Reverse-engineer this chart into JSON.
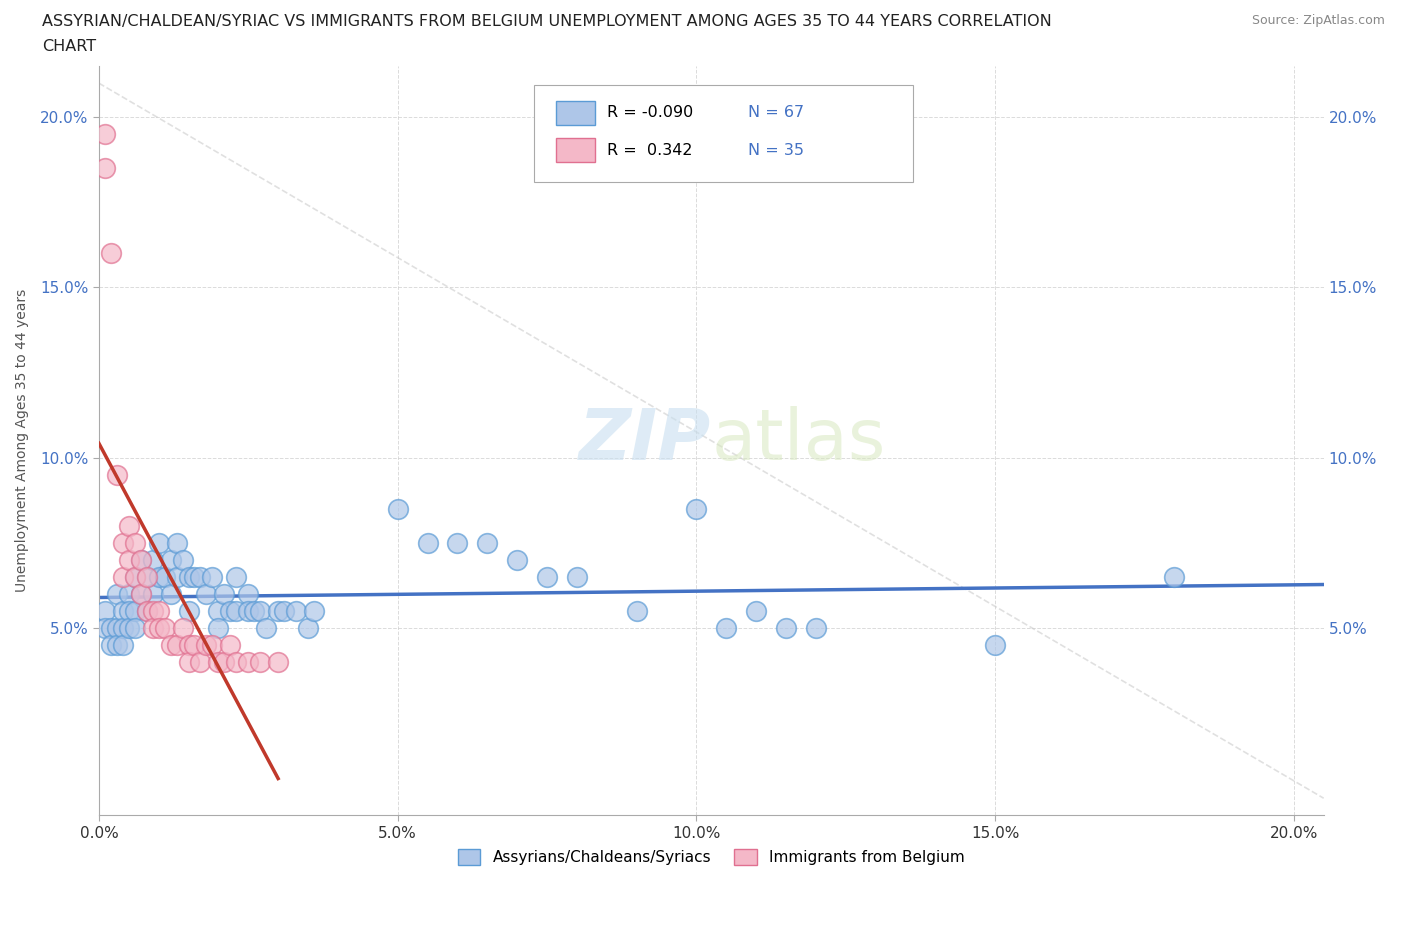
{
  "title_line1": "ASSYRIAN/CHALDEAN/SYRIAC VS IMMIGRANTS FROM BELGIUM UNEMPLOYMENT AMONG AGES 35 TO 44 YEARS CORRELATION",
  "title_line2": "CHART",
  "source_text": "Source: ZipAtlas.com",
  "ylabel": "Unemployment Among Ages 35 to 44 years",
  "xlim": [
    0.0,
    0.205
  ],
  "ylim": [
    -0.005,
    0.215
  ],
  "xtick_vals": [
    0.0,
    0.05,
    0.1,
    0.15,
    0.2
  ],
  "xtick_labels": [
    "0.0%",
    "5.0%",
    "10.0%",
    "15.0%",
    "20.0%"
  ],
  "ytick_vals": [
    0.05,
    0.1,
    0.15,
    0.2
  ],
  "ytick_labels": [
    "5.0%",
    "10.0%",
    "15.0%",
    "20.0%"
  ],
  "blue_R": -0.09,
  "blue_N": 67,
  "pink_R": 0.342,
  "pink_N": 35,
  "blue_fill": "#aec6e8",
  "blue_edge": "#5b9bd5",
  "pink_fill": "#f4b8c8",
  "pink_edge": "#e07090",
  "blue_line_color": "#4472c4",
  "pink_line_color": "#c0392b",
  "pink_dash_color": "#cccccc",
  "ytick_color": "#4472c4",
  "xtick_color": "#4472c4",
  "watermark_zip": "ZIP",
  "watermark_atlas": "atlas",
  "blue_dots": [
    [
      0.001,
      0.055
    ],
    [
      0.001,
      0.05
    ],
    [
      0.002,
      0.05
    ],
    [
      0.002,
      0.045
    ],
    [
      0.003,
      0.06
    ],
    [
      0.003,
      0.05
    ],
    [
      0.003,
      0.045
    ],
    [
      0.004,
      0.055
    ],
    [
      0.004,
      0.05
    ],
    [
      0.004,
      0.045
    ],
    [
      0.005,
      0.06
    ],
    [
      0.005,
      0.055
    ],
    [
      0.005,
      0.05
    ],
    [
      0.006,
      0.065
    ],
    [
      0.006,
      0.055
    ],
    [
      0.006,
      0.05
    ],
    [
      0.007,
      0.07
    ],
    [
      0.007,
      0.06
    ],
    [
      0.008,
      0.065
    ],
    [
      0.008,
      0.055
    ],
    [
      0.009,
      0.07
    ],
    [
      0.009,
      0.06
    ],
    [
      0.01,
      0.075
    ],
    [
      0.01,
      0.065
    ],
    [
      0.011,
      0.065
    ],
    [
      0.012,
      0.07
    ],
    [
      0.012,
      0.06
    ],
    [
      0.013,
      0.075
    ],
    [
      0.013,
      0.065
    ],
    [
      0.014,
      0.07
    ],
    [
      0.015,
      0.065
    ],
    [
      0.015,
      0.055
    ],
    [
      0.016,
      0.065
    ],
    [
      0.017,
      0.065
    ],
    [
      0.018,
      0.06
    ],
    [
      0.019,
      0.065
    ],
    [
      0.02,
      0.055
    ],
    [
      0.02,
      0.05
    ],
    [
      0.021,
      0.06
    ],
    [
      0.022,
      0.055
    ],
    [
      0.023,
      0.065
    ],
    [
      0.023,
      0.055
    ],
    [
      0.025,
      0.06
    ],
    [
      0.025,
      0.055
    ],
    [
      0.026,
      0.055
    ],
    [
      0.027,
      0.055
    ],
    [
      0.028,
      0.05
    ],
    [
      0.03,
      0.055
    ],
    [
      0.031,
      0.055
    ],
    [
      0.033,
      0.055
    ],
    [
      0.035,
      0.05
    ],
    [
      0.036,
      0.055
    ],
    [
      0.05,
      0.085
    ],
    [
      0.055,
      0.075
    ],
    [
      0.06,
      0.075
    ],
    [
      0.065,
      0.075
    ],
    [
      0.07,
      0.07
    ],
    [
      0.075,
      0.065
    ],
    [
      0.08,
      0.065
    ],
    [
      0.09,
      0.055
    ],
    [
      0.1,
      0.085
    ],
    [
      0.105,
      0.05
    ],
    [
      0.11,
      0.055
    ],
    [
      0.115,
      0.05
    ],
    [
      0.12,
      0.05
    ],
    [
      0.15,
      0.045
    ],
    [
      0.18,
      0.065
    ]
  ],
  "pink_dots": [
    [
      0.001,
      0.195
    ],
    [
      0.001,
      0.185
    ],
    [
      0.002,
      0.16
    ],
    [
      0.003,
      0.095
    ],
    [
      0.004,
      0.075
    ],
    [
      0.004,
      0.065
    ],
    [
      0.005,
      0.08
    ],
    [
      0.005,
      0.07
    ],
    [
      0.006,
      0.075
    ],
    [
      0.006,
      0.065
    ],
    [
      0.007,
      0.07
    ],
    [
      0.007,
      0.06
    ],
    [
      0.008,
      0.065
    ],
    [
      0.008,
      0.055
    ],
    [
      0.009,
      0.055
    ],
    [
      0.009,
      0.05
    ],
    [
      0.01,
      0.055
    ],
    [
      0.01,
      0.05
    ],
    [
      0.011,
      0.05
    ],
    [
      0.012,
      0.045
    ],
    [
      0.013,
      0.045
    ],
    [
      0.014,
      0.05
    ],
    [
      0.015,
      0.045
    ],
    [
      0.015,
      0.04
    ],
    [
      0.016,
      0.045
    ],
    [
      0.017,
      0.04
    ],
    [
      0.018,
      0.045
    ],
    [
      0.019,
      0.045
    ],
    [
      0.02,
      0.04
    ],
    [
      0.021,
      0.04
    ],
    [
      0.022,
      0.045
    ],
    [
      0.023,
      0.04
    ],
    [
      0.025,
      0.04
    ],
    [
      0.027,
      0.04
    ],
    [
      0.03,
      0.04
    ]
  ]
}
